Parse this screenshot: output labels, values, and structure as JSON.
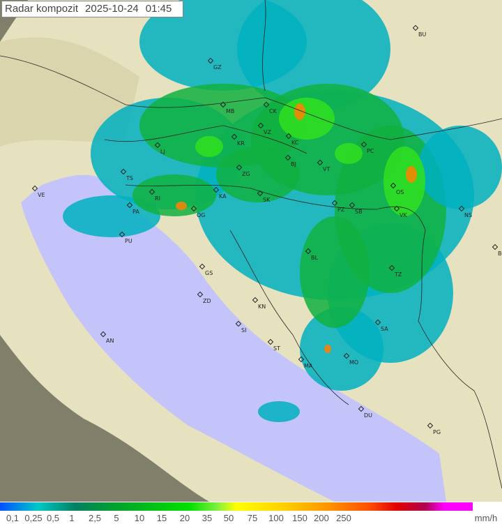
{
  "title": {
    "label": "Radar kompozit",
    "date": "2025-10-24",
    "time": "01:45"
  },
  "legend": {
    "unit": "mm/h",
    "ticks": [
      "0,1",
      "0,25",
      "0,5",
      "1",
      "2,5",
      "5",
      "10",
      "15",
      "20",
      "35",
      "50",
      "75",
      "100",
      "150",
      "200",
      "250"
    ]
  },
  "colors": {
    "sea": "#c4c4fa",
    "land": "#e6e2c0",
    "mountain": "#9a8f6a",
    "outside": "#7f7f6a",
    "radar_low": "#00b0c0",
    "radar_mid": "#10b040",
    "radar_high": "#30e020",
    "radar_peak": "#ff8000"
  },
  "cities": [
    "GZ",
    "MB",
    "CK",
    "VZ",
    "KR",
    "LJ",
    "KC",
    "PC",
    "TS",
    "ZG",
    "BJ",
    "VT",
    "OS",
    "NS",
    "RI",
    "KA",
    "SK",
    "PZ",
    "SB",
    "VK",
    "PA",
    "OG",
    "PU",
    "BL",
    "BG",
    "GS",
    "TZ",
    "ZD",
    "KN",
    "SA",
    "SI",
    "AN",
    "ST",
    "MO",
    "MA",
    "DU",
    "PG",
    "BU",
    "VE"
  ]
}
